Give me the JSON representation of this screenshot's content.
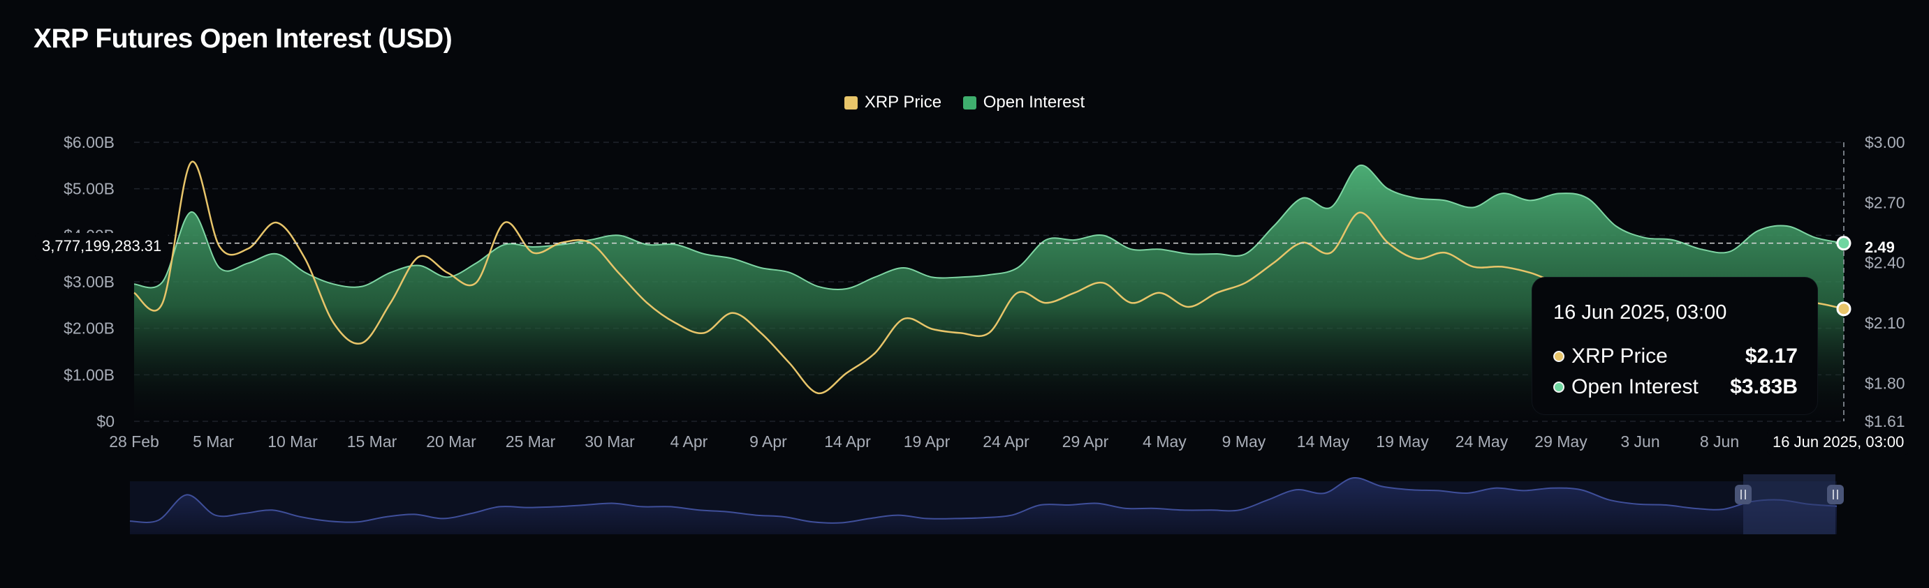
{
  "title": "XRP Futures Open Interest (USD)",
  "legend": [
    {
      "label": "XRP Price",
      "color": "#e8c56a"
    },
    {
      "label": "Open Interest",
      "color": "#3fae6e"
    }
  ],
  "crosshair": {
    "left_value": "3,777,199,283.31",
    "right_value": "2.49",
    "date_label": "16 Jun 2025, 03:00"
  },
  "tooltip": {
    "title": "16 Jun 2025, 03:00",
    "rows": [
      {
        "label": "XRP Price",
        "value": "$2.17"
      },
      {
        "label": "Open Interest",
        "value": "$3.83B"
      }
    ]
  },
  "chart_data": {
    "type": "area",
    "title": "XRP Futures Open Interest (USD)",
    "x_ticks": [
      "28 Feb",
      "5 Mar",
      "10 Mar",
      "15 Mar",
      "20 Mar",
      "25 Mar",
      "30 Mar",
      "4 Apr",
      "9 Apr",
      "14 Apr",
      "19 Apr",
      "24 Apr",
      "29 Apr",
      "4 May",
      "9 May",
      "14 May",
      "19 May",
      "24 May",
      "29 May",
      "3 Jun",
      "8 Jun"
    ],
    "y_left_ticks": [
      "$0",
      "$1.00B",
      "$2.00B",
      "$3.00B",
      "$4.00B",
      "$5.00B",
      "$6.00B"
    ],
    "y_right_ticks": [
      "$1.61",
      "$1.80",
      "$2.10",
      "$2.40",
      "$2.70",
      "$3.00"
    ],
    "y_left_range": [
      0,
      6000000000
    ],
    "y_right_range": [
      1.61,
      3.0
    ],
    "grid": true,
    "legend_position": "top-center",
    "x": [
      "28 Feb",
      "1 Mar",
      "2 Mar",
      "3 Mar",
      "4 Mar",
      "5 Mar",
      "7 Mar",
      "9 Mar",
      "10 Mar",
      "12 Mar",
      "14 Mar",
      "16 Mar",
      "18 Mar",
      "19 Mar",
      "20 Mar",
      "22 Mar",
      "24 Mar",
      "26 Mar",
      "28 Mar",
      "30 Mar",
      "1 Apr",
      "3 Apr",
      "5 Apr",
      "7 Apr",
      "8 Apr",
      "9 Apr",
      "11 Apr",
      "13 Apr",
      "15 Apr",
      "17 Apr",
      "19 Apr",
      "21 Apr",
      "23 Apr",
      "25 Apr",
      "27 Apr",
      "29 Apr",
      "1 May",
      "3 May",
      "5 May",
      "7 May",
      "9 May",
      "11 May",
      "12 May",
      "13 May",
      "15 May",
      "17 May",
      "19 May",
      "21 May",
      "23 May",
      "25 May",
      "27 May",
      "29 May",
      "31 May",
      "2 Jun",
      "4 Jun",
      "6 Jun",
      "8 Jun",
      "10 Jun",
      "12 Jun",
      "14 Jun",
      "16 Jun"
    ],
    "series": [
      {
        "name": "Open Interest",
        "axis": "left",
        "values": [
          2950000000.0,
          3000000000.0,
          4500000000.0,
          3300000000.0,
          3400000000.0,
          3600000000.0,
          3200000000.0,
          2950000000.0,
          2900000000.0,
          3200000000.0,
          3350000000.0,
          3100000000.0,
          3400000000.0,
          3800000000.0,
          3750000000.0,
          3800000000.0,
          3900000000.0,
          4000000000.0,
          3800000000.0,
          3800000000.0,
          3600000000.0,
          3500000000.0,
          3300000000.0,
          3200000000.0,
          2900000000.0,
          2850000000.0,
          3100000000.0,
          3300000000.0,
          3100000000.0,
          3100000000.0,
          3150000000.0,
          3300000000.0,
          3900000000.0,
          3900000000.0,
          4000000000.0,
          3700000000.0,
          3700000000.0,
          3600000000.0,
          3600000000.0,
          3600000000.0,
          4200000000.0,
          4800000000.0,
          4600000000.0,
          5500000000.0,
          5000000000.0,
          4800000000.0,
          4750000000.0,
          4600000000.0,
          4900000000.0,
          4750000000.0,
          4900000000.0,
          4800000000.0,
          4200000000.0,
          3950000000.0,
          3900000000.0,
          3700000000.0,
          3650000000.0,
          4100000000.0,
          4200000000.0,
          3950000000.0,
          3830000000.0
        ]
      },
      {
        "name": "XRP Price",
        "axis": "right",
        "values": [
          2.25,
          2.2,
          2.9,
          2.48,
          2.47,
          2.6,
          2.42,
          2.1,
          2.0,
          2.2,
          2.43,
          2.35,
          2.3,
          2.6,
          2.45,
          2.5,
          2.5,
          2.35,
          2.2,
          2.1,
          2.05,
          2.15,
          2.05,
          1.9,
          1.75,
          1.85,
          1.95,
          2.12,
          2.07,
          2.05,
          2.05,
          2.25,
          2.2,
          2.25,
          2.3,
          2.2,
          2.25,
          2.18,
          2.25,
          2.3,
          2.4,
          2.5,
          2.45,
          2.65,
          2.5,
          2.42,
          2.45,
          2.38,
          2.38,
          2.35,
          2.3,
          2.3,
          2.3,
          2.28,
          2.2,
          2.2,
          2.18,
          2.25,
          2.2,
          2.2,
          2.17
        ]
      }
    ]
  }
}
